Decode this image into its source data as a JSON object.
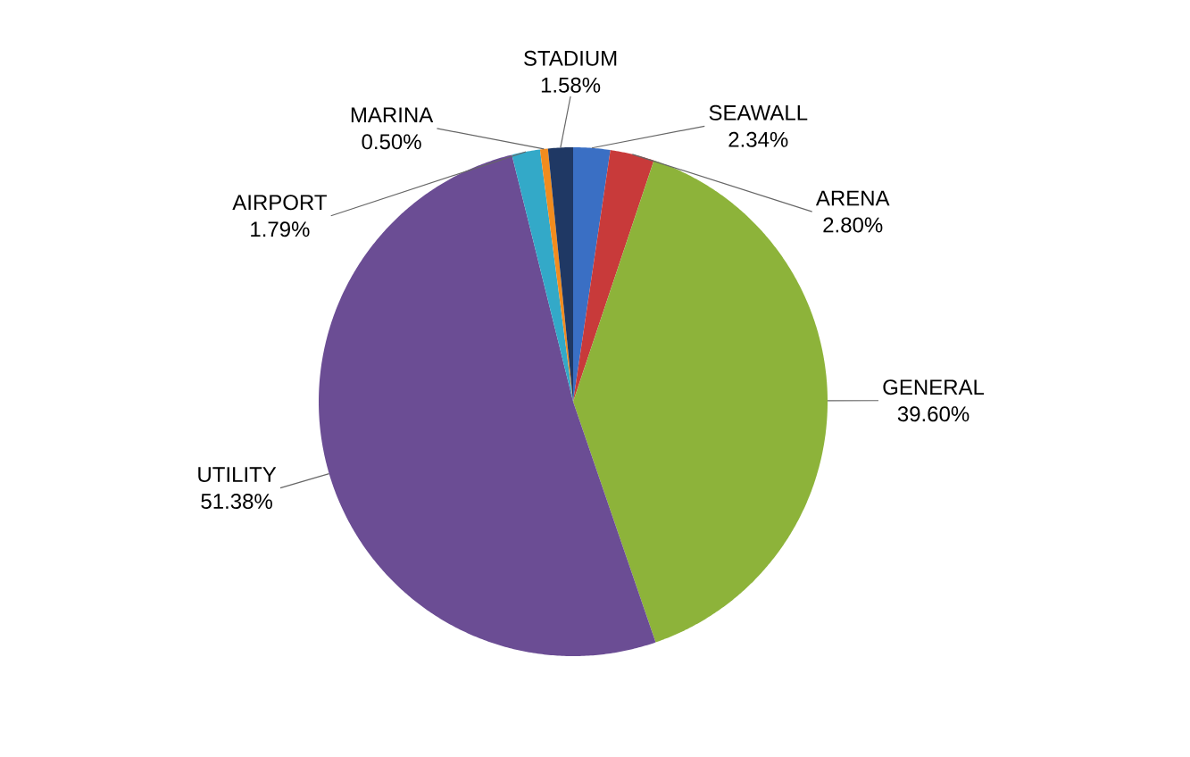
{
  "chart_data": {
    "type": "pie",
    "categories": [
      "SEAWALL",
      "ARENA",
      "GENERAL",
      "UTILITY",
      "AIRPORT",
      "MARINA",
      "STADIUM"
    ],
    "values": [
      2.34,
      2.8,
      39.6,
      51.38,
      1.79,
      0.5,
      1.58
    ],
    "colors": [
      "#3a6fc4",
      "#c83a3a",
      "#8db33a",
      "#6b4d94",
      "#33a9c8",
      "#f28c1e",
      "#1f3864"
    ],
    "value_labels": [
      "2.34%",
      "2.80%",
      "39.60%",
      "51.38%",
      "1.79%",
      "0.50%",
      "1.58%"
    ]
  }
}
